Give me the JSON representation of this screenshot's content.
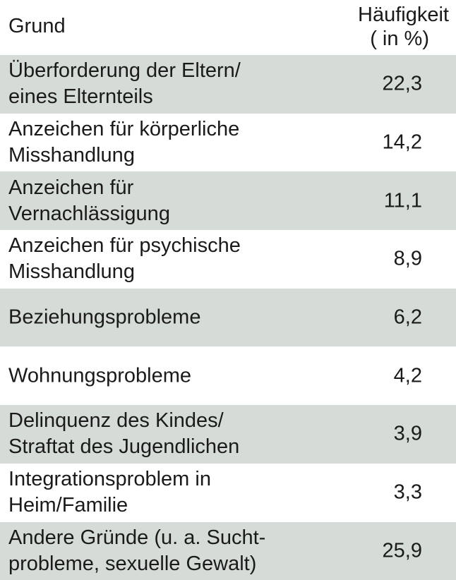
{
  "table": {
    "header": {
      "reason": "Grund",
      "frequency_line1": "Häufigkeit",
      "frequency_line2": "( in %)"
    },
    "rows": [
      {
        "reason": "Überforderung der Eltern/\neines Elternteils",
        "value": "22,3"
      },
      {
        "reason": "Anzeichen für körperliche\nMisshandlung",
        "value": "14,2"
      },
      {
        "reason": "Anzeichen für\nVernachlässigung",
        "value": "11,1"
      },
      {
        "reason": "Anzeichen für psychische\nMisshandlung",
        "value": "8,9"
      },
      {
        "reason": "Beziehungsprobleme",
        "value": "6,2"
      },
      {
        "reason": "Wohnungsprobleme",
        "value": "4,2"
      },
      {
        "reason": "Delinquenz des Kindes/\nStraftat des Jugendlichen",
        "value": "3,9"
      },
      {
        "reason": "Integrationsproblem in\nHeim/Familie",
        "value": "3,3"
      },
      {
        "reason": "Andere Gründe (u. a. Sucht-\nprobleme, sexuelle Gewalt)",
        "value": "25,9"
      }
    ],
    "colors": {
      "shaded_row": "#d5dbd6",
      "plain_row": "#ffffff",
      "text": "#1a1a1a"
    }
  }
}
